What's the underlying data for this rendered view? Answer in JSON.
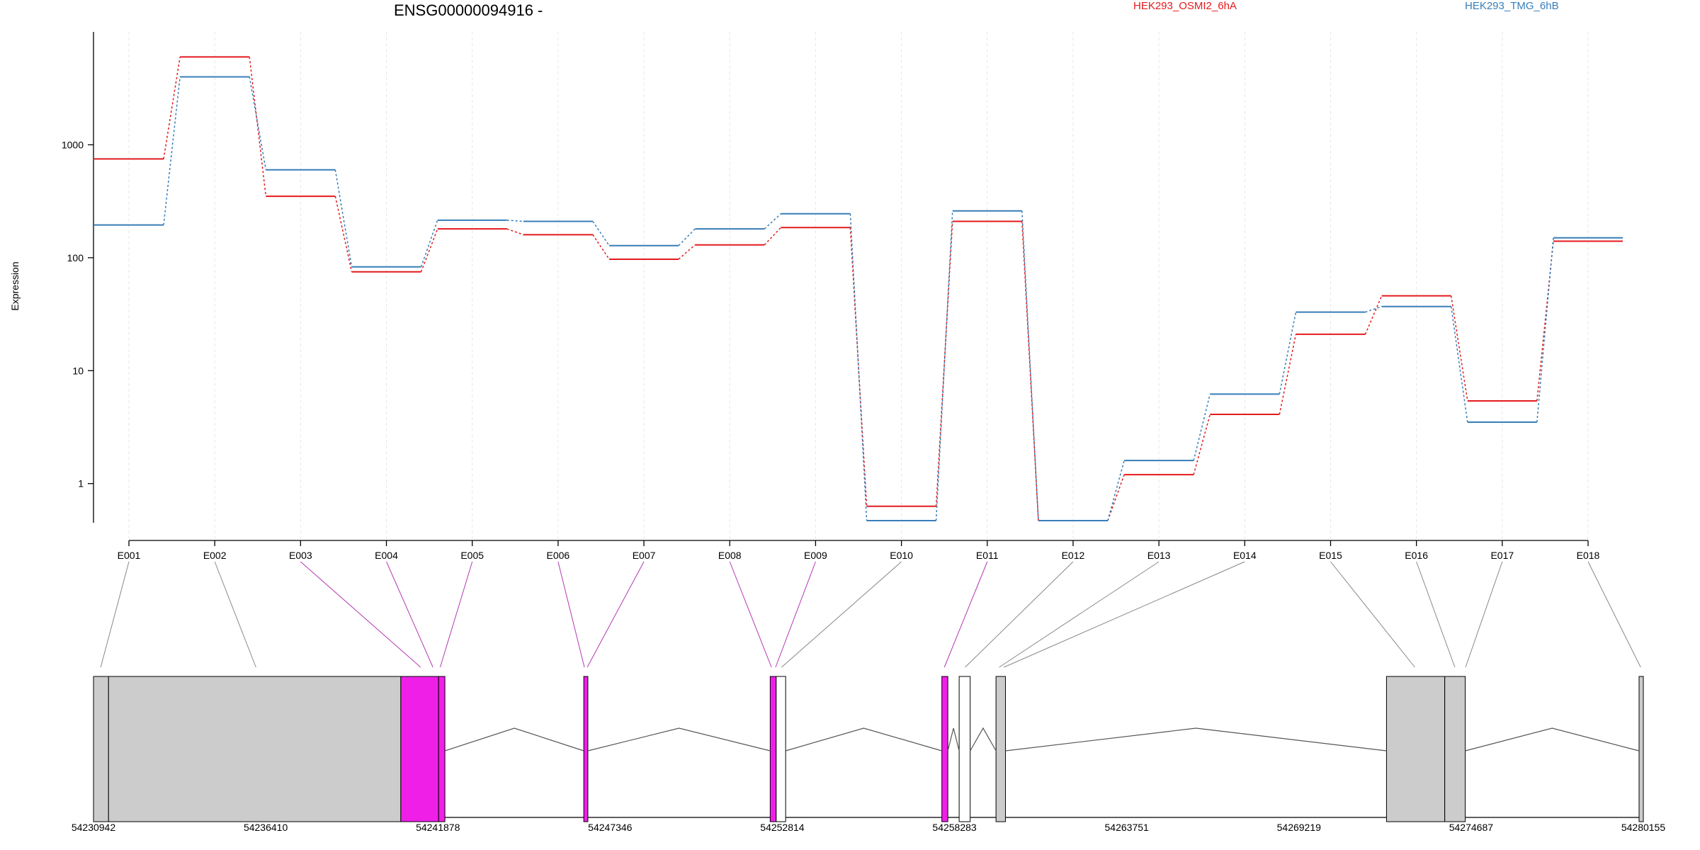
{
  "chart_data": {
    "type": "line",
    "title": "ENSG00000094916 -",
    "xlabel": "",
    "ylabel": "Expression",
    "y_scale": "log10",
    "ylim": [
      0.45,
      10000
    ],
    "y_ticks": [
      1,
      10,
      100,
      1000
    ],
    "y_tick_labels": [
      "1",
      "10",
      "100",
      "1000"
    ],
    "grid": "vertical dotted lines at exons",
    "legend_position": "top",
    "categories": [
      "E001",
      "E002",
      "E003",
      "E004",
      "E005",
      "E006",
      "E007",
      "E008",
      "E009",
      "E010",
      "E011",
      "E012",
      "E013",
      "E014",
      "E015",
      "E016",
      "E017",
      "E018"
    ],
    "series": [
      {
        "name": "HEK293_OSMI2_6hA",
        "color": "#e41a1c",
        "values": [
          750,
          6000,
          350,
          75,
          180,
          160,
          97,
          130,
          185,
          0.63,
          210,
          0.47,
          1.2,
          4.1,
          21,
          46,
          5.4,
          140
        ]
      },
      {
        "name": "HEK293_TMG_6hB",
        "color": "#377eb8",
        "values": [
          195,
          4000,
          600,
          83,
          215,
          210,
          128,
          180,
          245,
          0.47,
          260,
          0.47,
          1.6,
          6.2,
          33,
          37,
          3.5,
          150
        ]
      }
    ],
    "gene_model": {
      "coordinate_labels": [
        "54230942",
        "54236410",
        "54241878",
        "54247346",
        "54252814",
        "54258283",
        "54263751",
        "54269219",
        "54274687",
        "54280155"
      ],
      "coordinate_range": [
        54230942,
        54280155
      ],
      "exon_blocks": [
        {
          "start": 54230942,
          "end": 54231420,
          "fill": "#cccccc",
          "highlight": false
        },
        {
          "start": 54231420,
          "end": 54240700,
          "fill": "#cccccc",
          "highlight": false
        },
        {
          "start": 54240700,
          "end": 54241900,
          "fill": "#f01fe8",
          "highlight": true
        },
        {
          "start": 54241900,
          "end": 54242100,
          "fill": "#f01fe8",
          "highlight": true
        },
        {
          "start": 54246510,
          "end": 54246640,
          "fill": "#f01fe8",
          "highlight": true
        },
        {
          "start": 54252430,
          "end": 54252620,
          "fill": "#f01fe8",
          "highlight": true
        },
        {
          "start": 54252620,
          "end": 54252920,
          "fill": "#ffffff",
          "highlight": false
        },
        {
          "start": 54257880,
          "end": 54258070,
          "fill": "#f01fe8",
          "highlight": true
        },
        {
          "start": 54258430,
          "end": 54258780,
          "fill": "#ffffff",
          "highlight": false
        },
        {
          "start": 54259600,
          "end": 54259900,
          "fill": "#cccccc",
          "highlight": false
        },
        {
          "start": 54272000,
          "end": 54273850,
          "fill": "#cccccc",
          "highlight": false
        },
        {
          "start": 54273850,
          "end": 54274500,
          "fill": "#cccccc",
          "highlight": false
        },
        {
          "start": 54280020,
          "end": 54280155,
          "fill": "#cccccc",
          "highlight": false
        }
      ],
      "exon_links": [
        {
          "exon": "E001",
          "target": 54231170,
          "highlight": false
        },
        {
          "exon": "E002",
          "target": 54236100,
          "highlight": false
        },
        {
          "exon": "E003",
          "target": 54241330,
          "highlight": true
        },
        {
          "exon": "E004",
          "target": 54241720,
          "highlight": true
        },
        {
          "exon": "E005",
          "target": 54241950,
          "highlight": true
        },
        {
          "exon": "E006",
          "target": 54246530,
          "highlight": true
        },
        {
          "exon": "E007",
          "target": 54246620,
          "highlight": true
        },
        {
          "exon": "E008",
          "target": 54252470,
          "highlight": true
        },
        {
          "exon": "E009",
          "target": 54252600,
          "highlight": true
        },
        {
          "exon": "E010",
          "target": 54252790,
          "highlight": false
        },
        {
          "exon": "E011",
          "target": 54257960,
          "highlight": true
        },
        {
          "exon": "E012",
          "target": 54258620,
          "highlight": false
        },
        {
          "exon": "E013",
          "target": 54259700,
          "highlight": false
        },
        {
          "exon": "E014",
          "target": 54259850,
          "highlight": false
        },
        {
          "exon": "E015",
          "target": 54272900,
          "highlight": false
        },
        {
          "exon": "E016",
          "target": 54274170,
          "highlight": false
        },
        {
          "exon": "E017",
          "target": 54274510,
          "highlight": false
        },
        {
          "exon": "E018",
          "target": 54280070,
          "highlight": false
        }
      ],
      "introns": [
        {
          "from": 54242100,
          "to": 54246510
        },
        {
          "from": 54246640,
          "to": 54252430
        },
        {
          "from": 54252920,
          "to": 54257880
        },
        {
          "from": 54258070,
          "to": 54258430
        },
        {
          "from": 54258780,
          "to": 54259600
        },
        {
          "from": 54259900,
          "to": 54272000
        },
        {
          "from": 54274500,
          "to": 54280020
        }
      ]
    }
  }
}
